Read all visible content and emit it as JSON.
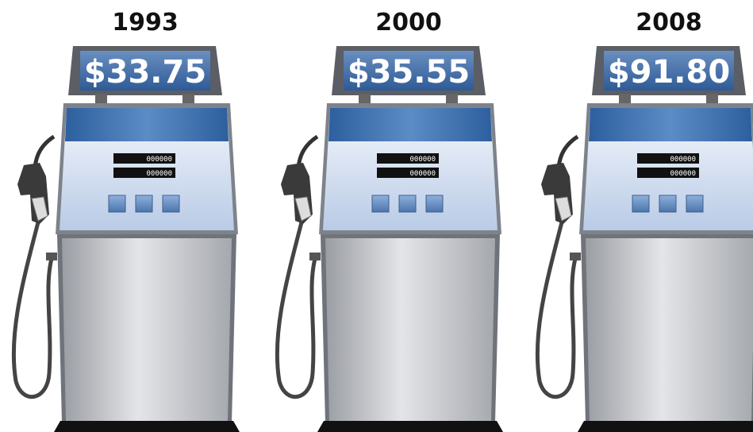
{
  "pumps": [
    {
      "year": "1993",
      "price": "$33.75",
      "displays": [
        "000000",
        "000000"
      ]
    },
    {
      "year": "2000",
      "price": "$35.55",
      "displays": [
        "000000",
        "000000"
      ]
    },
    {
      "year": "2008",
      "price": "$91.80",
      "displays": [
        "000000",
        "000000"
      ]
    }
  ]
}
